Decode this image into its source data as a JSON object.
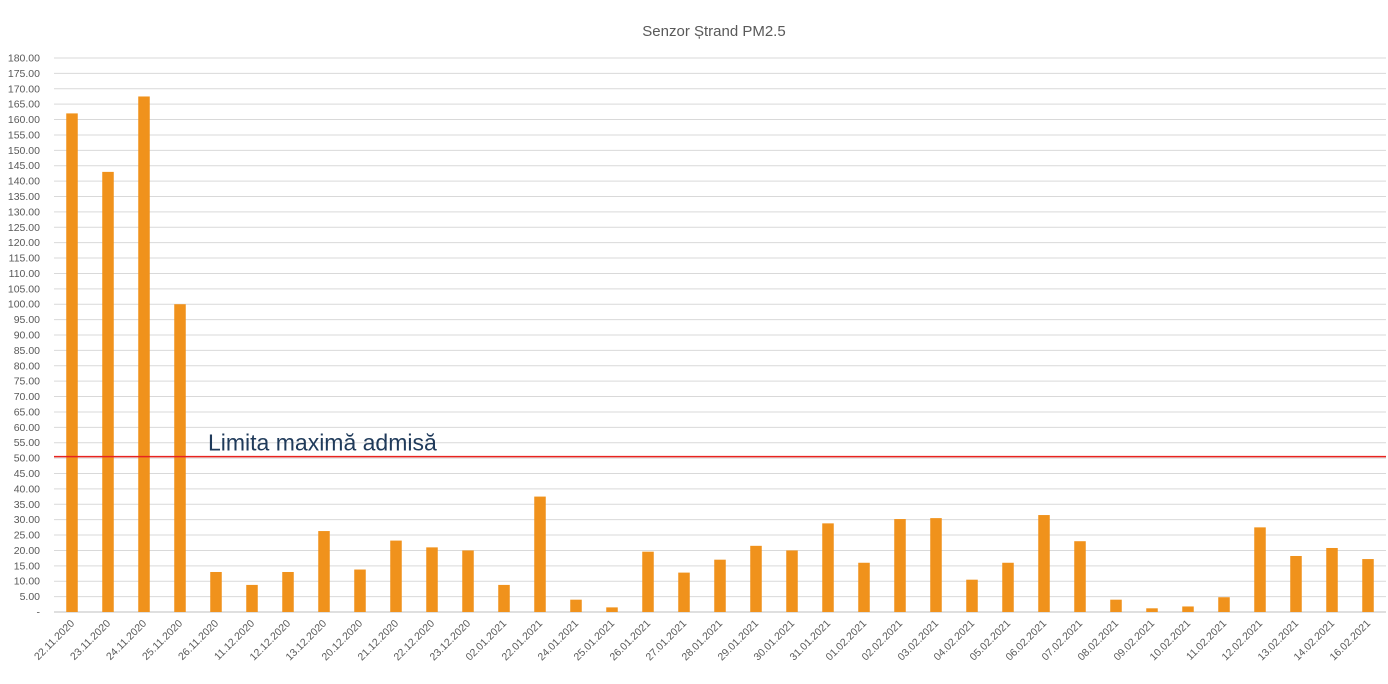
{
  "chart_data": {
    "type": "bar",
    "title": "Senzor Ștrand PM2.5",
    "xlabel": "",
    "ylabel": "",
    "ylim": [
      0,
      180
    ],
    "y_ticks": [
      "-",
      "5.00",
      "10.00",
      "15.00",
      "20.00",
      "25.00",
      "30.00",
      "35.00",
      "40.00",
      "45.00",
      "50.00",
      "55.00",
      "60.00",
      "65.00",
      "70.00",
      "75.00",
      "80.00",
      "85.00",
      "90.00",
      "95.00",
      "100.00",
      "105.00",
      "110.00",
      "115.00",
      "120.00",
      "125.00",
      "130.00",
      "135.00",
      "140.00",
      "145.00",
      "150.00",
      "155.00",
      "160.00",
      "165.00",
      "170.00",
      "175.00",
      "180.00"
    ],
    "grid": true,
    "legend": "none",
    "bar_color": "#f0921c",
    "categories": [
      "22.11.2020",
      "23.11.2020",
      "24.11.2020",
      "25.11.2020",
      "26.11.2020",
      "11.12.2020",
      "12.12.2020",
      "13.12.2020",
      "20.12.2020",
      "21.12.2020",
      "22.12.2020",
      "23.12.2020",
      "02.01.2021",
      "22.01.2021",
      "24.01.2021",
      "25.01.2021",
      "26.01.2021",
      "27.01.2021",
      "28.01.2021",
      "29.01.2021",
      "30.01.2021",
      "31.01.2021",
      "01.02.2021",
      "02.02.2021",
      "03.02.2021",
      "04.02.2021",
      "05.02.2021",
      "06.02.2021",
      "07.02.2021",
      "08.02.2021",
      "09.02.2021",
      "10.02.2021",
      "11.02.2021",
      "12.02.2021",
      "13.02.2021",
      "14.02.2021",
      "16.02.2021"
    ],
    "values": [
      162,
      143,
      167.5,
      100,
      13,
      8.8,
      13,
      26.3,
      13.8,
      23.2,
      21,
      20,
      8.8,
      37.5,
      4,
      1.5,
      19.6,
      12.8,
      17,
      21.5,
      20,
      28.8,
      16,
      30.2,
      30.5,
      10.5,
      16,
      31.5,
      23,
      4,
      1.2,
      1.8,
      4.8,
      27.5,
      18.2,
      20.8,
      17.2
    ],
    "reference_line": {
      "value": 50.5,
      "label": "Limita maximă admisă",
      "color": "#e8231f"
    }
  }
}
